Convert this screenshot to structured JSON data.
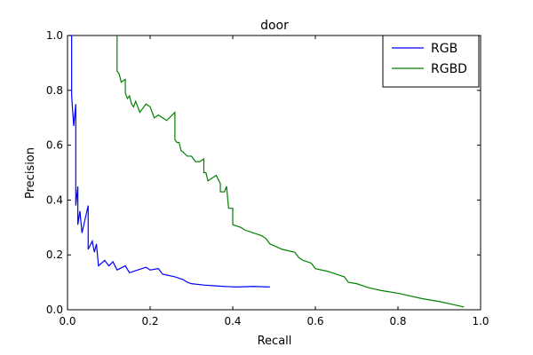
{
  "chart_data": {
    "type": "line",
    "title": "door",
    "xlabel": "Recall",
    "ylabel": "Precision",
    "xlim": [
      0.0,
      1.0
    ],
    "ylim": [
      0.0,
      1.0
    ],
    "xticks": [
      "0.0",
      "0.2",
      "0.4",
      "0.6",
      "0.8",
      "1.0"
    ],
    "yticks": [
      "0.0",
      "0.2",
      "0.4",
      "0.6",
      "0.8",
      "1.0"
    ],
    "grid": false,
    "legend_position": "top-right",
    "series": [
      {
        "name": "RGB",
        "color": "#0000ff",
        "points": [
          [
            0.005,
            1.0
          ],
          [
            0.01,
            1.0
          ],
          [
            0.01,
            0.78
          ],
          [
            0.015,
            0.67
          ],
          [
            0.02,
            0.75
          ],
          [
            0.02,
            0.38
          ],
          [
            0.025,
            0.45
          ],
          [
            0.025,
            0.31
          ],
          [
            0.03,
            0.36
          ],
          [
            0.035,
            0.28
          ],
          [
            0.05,
            0.38
          ],
          [
            0.05,
            0.22
          ],
          [
            0.06,
            0.25
          ],
          [
            0.065,
            0.21
          ],
          [
            0.07,
            0.24
          ],
          [
            0.075,
            0.16
          ],
          [
            0.09,
            0.18
          ],
          [
            0.1,
            0.16
          ],
          [
            0.11,
            0.175
          ],
          [
            0.12,
            0.145
          ],
          [
            0.14,
            0.16
          ],
          [
            0.15,
            0.135
          ],
          [
            0.17,
            0.145
          ],
          [
            0.19,
            0.155
          ],
          [
            0.2,
            0.145
          ],
          [
            0.22,
            0.15
          ],
          [
            0.23,
            0.13
          ],
          [
            0.26,
            0.12
          ],
          [
            0.28,
            0.11
          ],
          [
            0.29,
            0.1
          ],
          [
            0.3,
            0.095
          ],
          [
            0.33,
            0.09
          ],
          [
            0.36,
            0.087
          ],
          [
            0.38,
            0.085
          ],
          [
            0.41,
            0.083
          ],
          [
            0.45,
            0.085
          ],
          [
            0.49,
            0.083
          ]
        ]
      },
      {
        "name": "RGBD",
        "color": "#008000",
        "points": [
          [
            0.12,
            1.0
          ],
          [
            0.12,
            0.87
          ],
          [
            0.125,
            0.86
          ],
          [
            0.13,
            0.83
          ],
          [
            0.14,
            0.84
          ],
          [
            0.14,
            0.79
          ],
          [
            0.145,
            0.77
          ],
          [
            0.15,
            0.78
          ],
          [
            0.155,
            0.75
          ],
          [
            0.16,
            0.74
          ],
          [
            0.165,
            0.76
          ],
          [
            0.175,
            0.72
          ],
          [
            0.18,
            0.73
          ],
          [
            0.19,
            0.75
          ],
          [
            0.2,
            0.74
          ],
          [
            0.21,
            0.7
          ],
          [
            0.22,
            0.71
          ],
          [
            0.24,
            0.69
          ],
          [
            0.26,
            0.72
          ],
          [
            0.26,
            0.62
          ],
          [
            0.265,
            0.61
          ],
          [
            0.27,
            0.61
          ],
          [
            0.275,
            0.58
          ],
          [
            0.28,
            0.575
          ],
          [
            0.29,
            0.56
          ],
          [
            0.3,
            0.56
          ],
          [
            0.31,
            0.54
          ],
          [
            0.32,
            0.54
          ],
          [
            0.33,
            0.55
          ],
          [
            0.33,
            0.5
          ],
          [
            0.335,
            0.5
          ],
          [
            0.34,
            0.47
          ],
          [
            0.35,
            0.48
          ],
          [
            0.36,
            0.49
          ],
          [
            0.37,
            0.46
          ],
          [
            0.37,
            0.43
          ],
          [
            0.38,
            0.43
          ],
          [
            0.385,
            0.45
          ],
          [
            0.39,
            0.37
          ],
          [
            0.4,
            0.37
          ],
          [
            0.4,
            0.31
          ],
          [
            0.42,
            0.3
          ],
          [
            0.43,
            0.29
          ],
          [
            0.45,
            0.28
          ],
          [
            0.47,
            0.27
          ],
          [
            0.48,
            0.26
          ],
          [
            0.49,
            0.24
          ],
          [
            0.52,
            0.22
          ],
          [
            0.55,
            0.21
          ],
          [
            0.56,
            0.19
          ],
          [
            0.57,
            0.18
          ],
          [
            0.59,
            0.17
          ],
          [
            0.6,
            0.15
          ],
          [
            0.63,
            0.14
          ],
          [
            0.65,
            0.13
          ],
          [
            0.67,
            0.12
          ],
          [
            0.68,
            0.1
          ],
          [
            0.7,
            0.095
          ],
          [
            0.73,
            0.08
          ],
          [
            0.76,
            0.07
          ],
          [
            0.8,
            0.06
          ],
          [
            0.83,
            0.05
          ],
          [
            0.86,
            0.04
          ],
          [
            0.9,
            0.03
          ],
          [
            0.93,
            0.02
          ],
          [
            0.96,
            0.01
          ]
        ]
      }
    ]
  }
}
